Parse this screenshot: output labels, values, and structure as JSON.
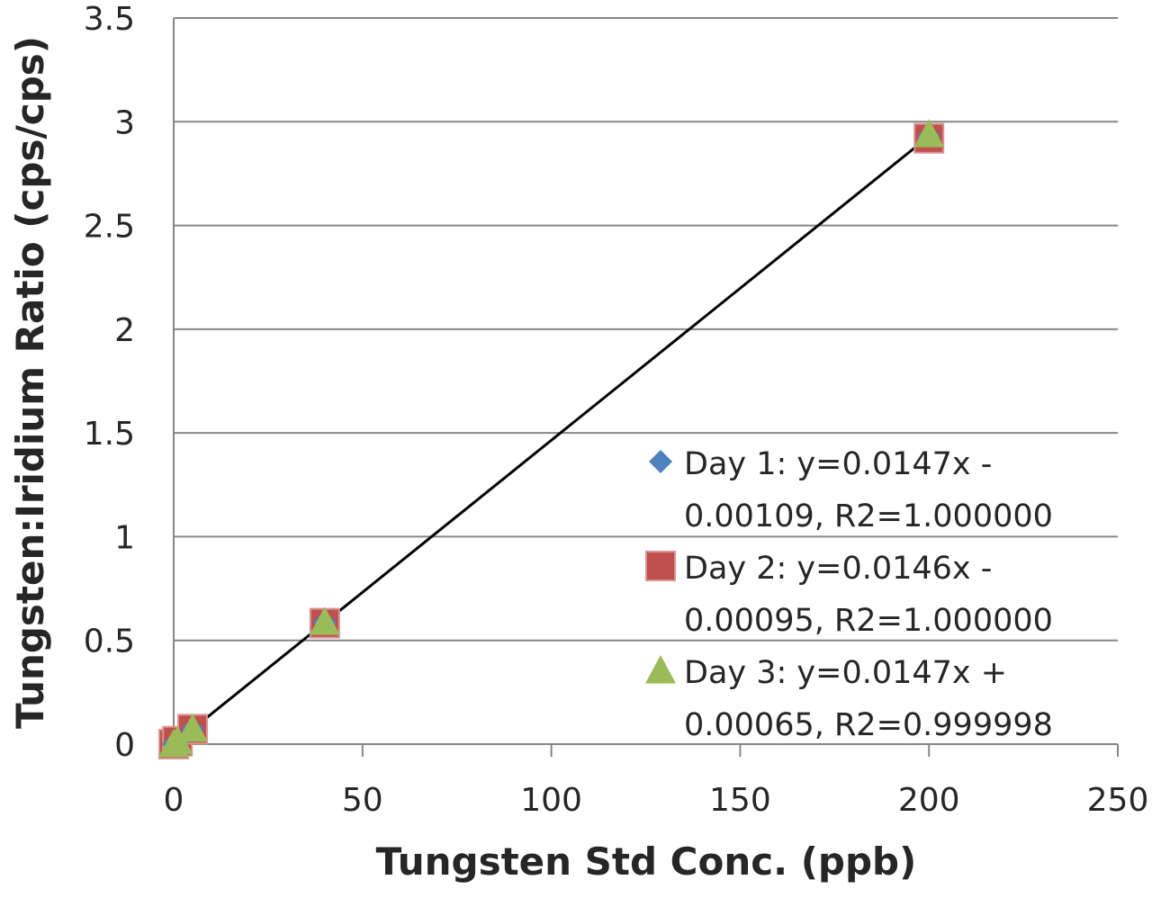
{
  "chart_data": {
    "type": "scatter",
    "title": "",
    "xlabel": "Tungsten Std Conc. (ppb)",
    "ylabel": "Tungsten:Iridium Ratio (cps/cps)",
    "xlim": [
      0,
      250
    ],
    "ylim": [
      0,
      3.5
    ],
    "x_ticks": [
      "0",
      "50",
      "100",
      "150",
      "200",
      "250"
    ],
    "y_ticks": [
      "0",
      "0.5",
      "1",
      "1.5",
      "2",
      "2.5",
      "3",
      "3.5"
    ],
    "grid": "horizontal",
    "legend_position": "right",
    "series": [
      {
        "name": "Day 1: y=0.0147x - 0.00109, R2=1.000000",
        "legend_lines": [
          "Day 1: y=0.0147x -",
          "0.00109, R2=1.000000"
        ],
        "marker": "diamond",
        "color": "#4f81bd",
        "points": [
          [
            0,
            0
          ],
          [
            1,
            0.014
          ],
          [
            5,
            0.072
          ],
          [
            40,
            0.587
          ],
          [
            200,
            2.93
          ]
        ]
      },
      {
        "name": "Day 2: y=0.0146x - 0.00095, R2=1.000000",
        "legend_lines": [
          "Day 2: y=0.0146x -",
          "0.00095, R2=1.000000"
        ],
        "marker": "square",
        "color": "#c0504d",
        "points": [
          [
            0,
            0
          ],
          [
            1,
            0.014
          ],
          [
            5,
            0.072
          ],
          [
            40,
            0.583
          ],
          [
            200,
            2.92
          ]
        ]
      },
      {
        "name": "Day 3: y=0.0147x + 0.00065, R2=0.999998",
        "legend_lines": [
          "Day 3: y=0.0147x +",
          "0.00065, R2=0.999998"
        ],
        "marker": "triangle",
        "color": "#9bbb59",
        "points": [
          [
            0,
            0
          ],
          [
            1,
            0.015
          ],
          [
            5,
            0.074
          ],
          [
            40,
            0.589
          ],
          [
            200,
            2.94
          ]
        ]
      }
    ],
    "trendline": {
      "color": "#000000",
      "from": [
        1,
        0.014
      ],
      "to": [
        200,
        2.93
      ]
    }
  }
}
